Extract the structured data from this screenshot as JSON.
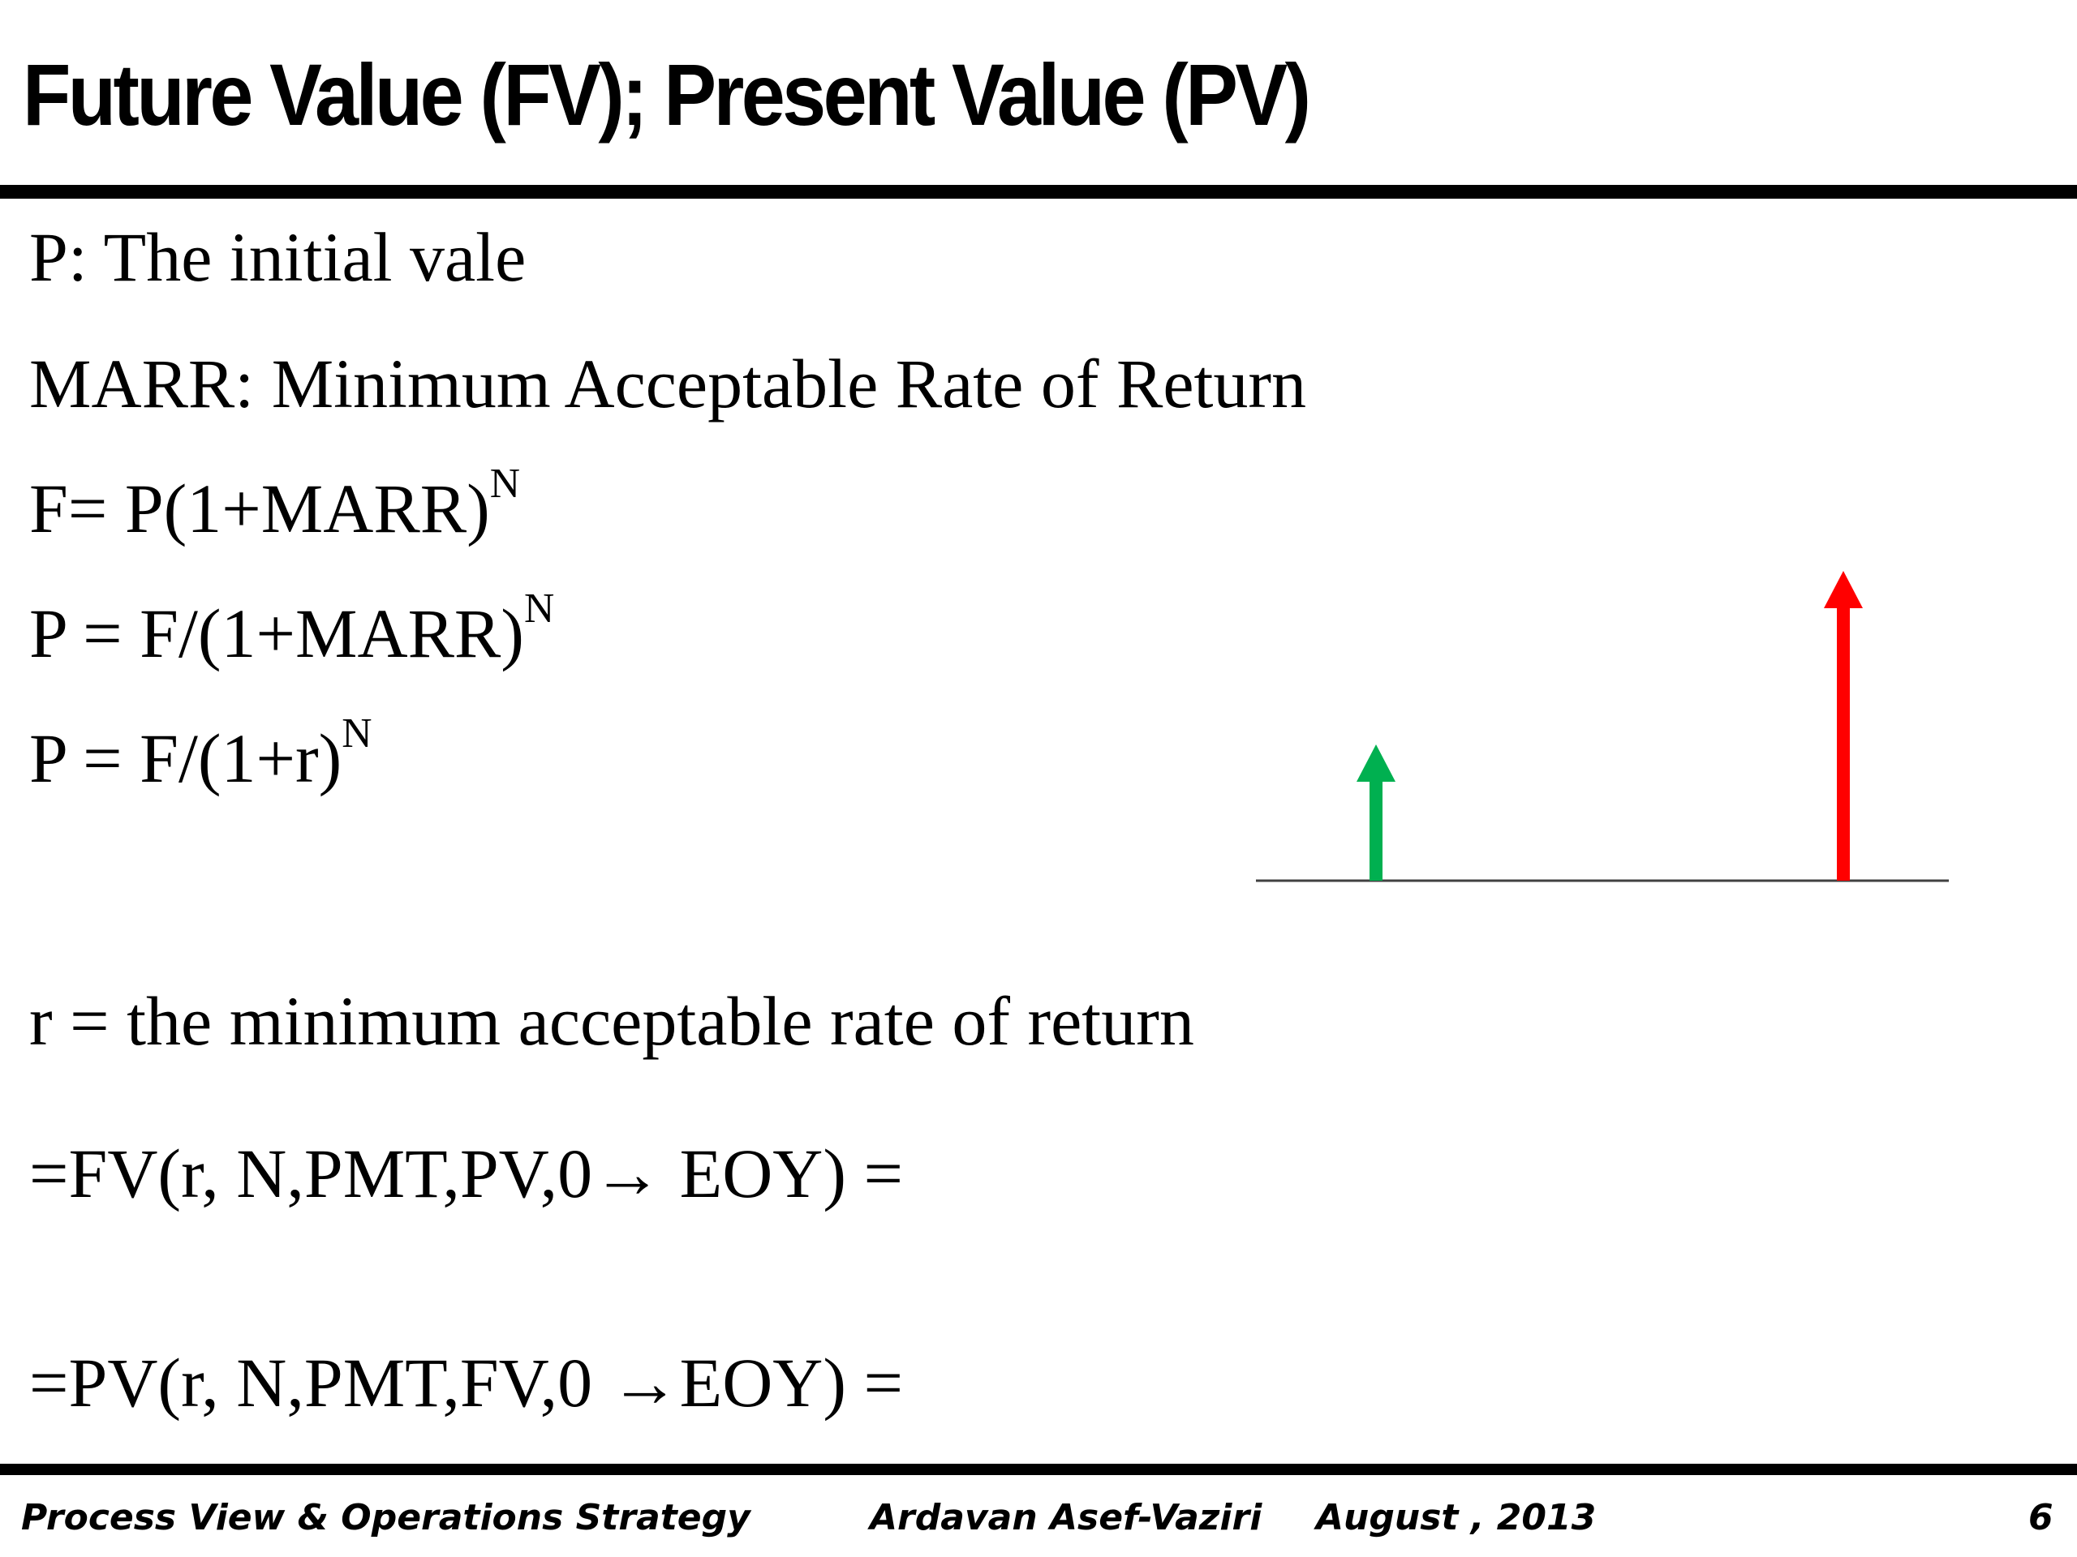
{
  "slide": {
    "title": "Future Value (FV); Present Value (PV)"
  },
  "body": {
    "line1": "P: The initial vale",
    "line2": "MARR: Minimum Acceptable Rate of Return",
    "line3_base": "F= P(1+MARR)",
    "line3_exp": "N",
    "line4_base": "P = F/(1+MARR)",
    "line4_exp": "N",
    "line5_base": "P = F/(1+r)",
    "line5_exp": "N",
    "line6": "r = the minimum acceptable rate of return",
    "line7": "=FV(r, N,PMT,PV,0→ EOY) =",
    "line8": "=PV(r, N,PMT,FV,0 →EOY) ="
  },
  "diagram": {
    "present_arrow_color": "#00b050",
    "future_arrow_color": "#ff0000",
    "timeline_color": "#404040"
  },
  "footer": {
    "course": "Process View & Operations Strategy",
    "author": "Ardavan Asef-Vaziri",
    "date": "August , 2013",
    "page": "6"
  }
}
